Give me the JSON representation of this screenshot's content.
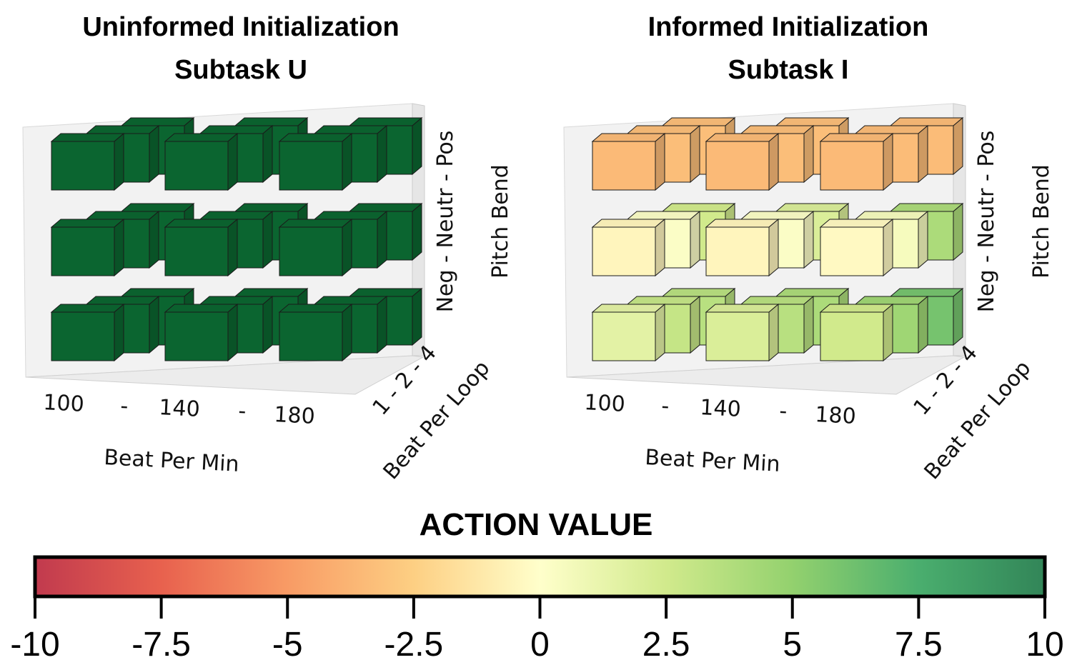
{
  "chart_data": [
    {
      "type": "bar3d",
      "title": "Uninformed Initialization",
      "subtitle": "Subtask U",
      "x_label": "Beat Per Min",
      "x_ticks": [
        "100",
        "-",
        "140",
        "-",
        "180"
      ],
      "y_label": "Beat Per Loop",
      "y_ticks": "1 - 2 - 4",
      "z_label": "Pitch Bend",
      "z_ticks": "Neg - Neutr - Pos",
      "bpm_levels": [
        100,
        140,
        180
      ],
      "beats_per_loop_levels": [
        1,
        2,
        4
      ],
      "pitch_levels": [
        "Neg",
        "Neutr",
        "Pos"
      ],
      "values": [
        [
          [
            10,
            10,
            10
          ],
          [
            10,
            10,
            10
          ],
          [
            10,
            10,
            10
          ]
        ],
        [
          [
            10,
            10,
            10
          ],
          [
            10,
            10,
            10
          ],
          [
            10,
            10,
            10
          ]
        ],
        [
          [
            10,
            10,
            10
          ],
          [
            10,
            10,
            10
          ],
          [
            10,
            10,
            10
          ]
        ]
      ]
    },
    {
      "type": "bar3d",
      "title": "Informed Initialization",
      "subtitle": "Subtask I",
      "x_label": "Beat Per Min",
      "x_ticks": [
        "100",
        "-",
        "140",
        "-",
        "180"
      ],
      "y_label": "Beat Per Loop",
      "y_ticks": "1 - 2 - 4",
      "z_label": "Pitch Bend",
      "z_ticks": "Neg - Neutr - Pos",
      "bpm_levels": [
        100,
        140,
        180
      ],
      "beats_per_loop_levels": [
        1,
        2,
        4
      ],
      "pitch_levels": [
        "Neg",
        "Neutr",
        "Pos"
      ],
      "values": [
        [
          [
            1.5,
            3.0,
            3.5
          ],
          [
            2.0,
            3.5,
            4.0
          ],
          [
            2.5,
            4.5,
            6.0
          ]
        ],
        [
          [
            -0.5,
            0.2,
            2.5
          ],
          [
            -0.5,
            0.2,
            2.0
          ],
          [
            -0.3,
            0.5,
            4.0
          ]
        ],
        [
          [
            -3.5,
            -3.3,
            -3.3
          ],
          [
            -3.5,
            -3.3,
            -3.3
          ],
          [
            -3.5,
            -3.4,
            -3.4
          ]
        ]
      ]
    }
  ],
  "colorbar": {
    "title": "ACTION VALUE",
    "min": -10,
    "max": 10,
    "ticks": [
      "-10",
      "-7.5",
      "-5",
      "-2.5",
      "0",
      "2.5",
      "5",
      "7.5",
      "10"
    ],
    "colormap": [
      "#c13a4e",
      "#e8614e",
      "#f89b65",
      "#fdcf83",
      "#ffffcb",
      "#d1ea8c",
      "#93d16e",
      "#4aae6e",
      "#328558"
    ],
    "uninformed_color": "#0b6530"
  }
}
